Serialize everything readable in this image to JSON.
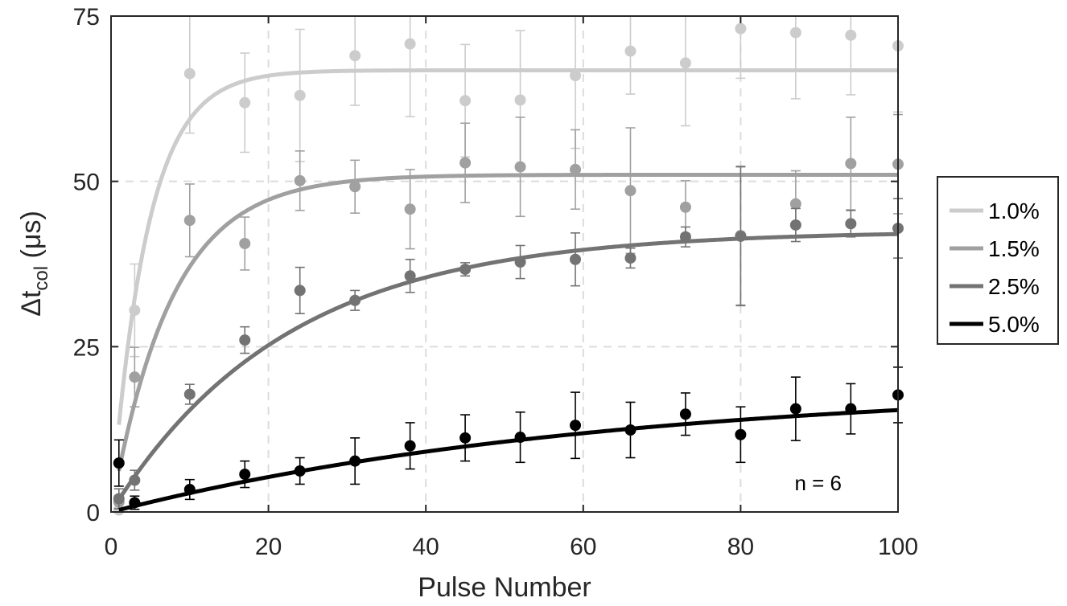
{
  "chart_data": {
    "type": "scatter",
    "title": "",
    "xlabel": "Pulse Number",
    "ylabel": {
      "symbol": "Δt",
      "subscript": "col",
      "unit": " (μs)"
    },
    "xlim": [
      0,
      100
    ],
    "ylim": [
      0,
      75
    ],
    "xticks": [
      0,
      20,
      40,
      60,
      80,
      100
    ],
    "yticks": [
      0,
      25,
      50,
      75
    ],
    "xtick_labels": [
      "0",
      "20",
      "40",
      "60",
      "80",
      "100"
    ],
    "ytick_labels": [
      "0",
      "25",
      "50",
      "75"
    ],
    "grid": true,
    "legend_position": "outside-right",
    "annotation": "n = 6",
    "x": [
      1,
      3,
      10,
      17,
      24,
      31,
      38,
      45,
      52,
      59,
      66,
      73,
      80,
      87,
      94,
      100
    ],
    "series": [
      {
        "name": "1.0%",
        "color": "#cccccc",
        "y": [
          0.3,
          30.5,
          66.3,
          61.9,
          63.0,
          69.0,
          70.8,
          62.2,
          62.3,
          66.0,
          69.7,
          67.9,
          73.1,
          72.5,
          72.1,
          70.5
        ],
        "err": [
          1.0,
          7.0,
          9.0,
          7.5,
          10.0,
          7.5,
          11.0,
          8.5,
          10.5,
          11.0,
          6.5,
          9.5,
          7.5,
          10.0,
          9.0,
          10.0
        ],
        "fit": {
          "plateau": 66.8,
          "rate": 0.22
        }
      },
      {
        "name": "1.5%",
        "color": "#a0a0a0",
        "y": [
          1.5,
          20.4,
          44.1,
          40.6,
          50.1,
          49.2,
          45.8,
          52.8,
          52.2,
          51.8,
          48.6,
          46.1,
          41.8,
          46.6,
          52.7,
          52.6
        ],
        "err": [
          1.0,
          4.5,
          5.5,
          4.0,
          4.5,
          4.0,
          6.0,
          6.0,
          7.5,
          6.0,
          9.5,
          4.0,
          10.5,
          5.0,
          7.0,
          7.5
        ],
        "fit": {
          "plateau": 51.0,
          "rate": 0.13
        }
      },
      {
        "name": "2.5%",
        "color": "#737373",
        "y": [
          2.0,
          4.8,
          17.8,
          26.0,
          33.5,
          32.0,
          35.7,
          36.7,
          37.8,
          38.2,
          38.4,
          41.6,
          41.7,
          43.4,
          43.6,
          42.9
        ],
        "err": [
          1.5,
          1.5,
          1.5,
          2.0,
          3.5,
          1.5,
          2.5,
          1.0,
          2.5,
          4.0,
          1.5,
          1.5,
          10.5,
          2.5,
          2.0,
          4.5
        ],
        "fit": {
          "plateau": 42.5,
          "rate": 0.045
        }
      },
      {
        "name": "5.0%",
        "color": "#000000",
        "y": [
          7.4,
          1.4,
          3.4,
          5.7,
          6.2,
          7.7,
          10.0,
          11.2,
          11.3,
          13.1,
          12.4,
          14.8,
          11.7,
          15.6,
          15.6,
          17.7
        ],
        "err": [
          3.5,
          1.0,
          1.5,
          2.0,
          2.0,
          3.5,
          3.5,
          3.5,
          3.8,
          5.0,
          4.2,
          3.2,
          4.2,
          4.8,
          3.8,
          4.2
        ],
        "fit": {
          "plateau": 19.3,
          "rate": 0.016
        }
      }
    ]
  }
}
